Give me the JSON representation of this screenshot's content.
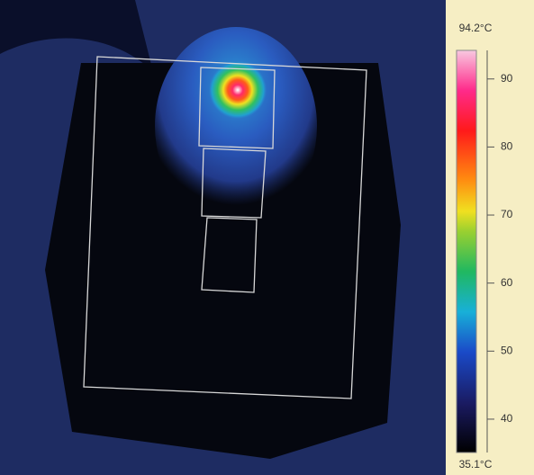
{
  "colorbar": {
    "max_label": "94.2°C",
    "min_label": "35.1°C",
    "range": [
      35.1,
      94.2
    ],
    "ticks": [
      40,
      50,
      60,
      70,
      80,
      90
    ]
  }
}
